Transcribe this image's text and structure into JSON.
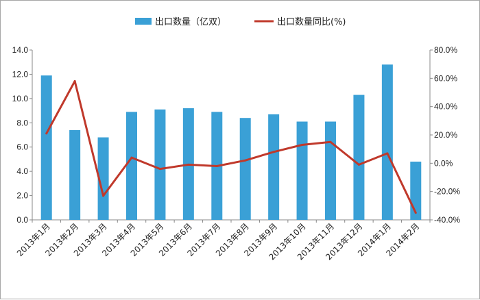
{
  "chart_data": {
    "type": "bar",
    "categories": [
      "2013年1月",
      "2013年2月",
      "2013年3月",
      "2013年4月",
      "2013年5月",
      "2013年6月",
      "2013年7月",
      "2013年8月",
      "2013年9月",
      "2013年10月",
      "2013年11月",
      "2013年12月",
      "2014年1月",
      "2014年2月"
    ],
    "series": [
      {
        "name": "出口数量（亿双）",
        "type": "bar",
        "axis": "left",
        "color": "#3aa0d6",
        "values": [
          11.9,
          7.4,
          6.8,
          8.9,
          9.1,
          9.2,
          8.9,
          8.4,
          8.7,
          8.1,
          8.1,
          10.3,
          12.8,
          4.8
        ]
      },
      {
        "name": "出口数量同比(%)",
        "type": "line",
        "axis": "right",
        "color": "#c0392b",
        "values": [
          21,
          58,
          -23,
          4,
          -4,
          -1,
          -2,
          2,
          8,
          13,
          15,
          -1,
          7,
          -35
        ]
      }
    ],
    "y_left": {
      "ylim": [
        0,
        14
      ],
      "ticks": [
        "0.0",
        "2.0",
        "4.0",
        "6.0",
        "8.0",
        "10.0",
        "12.0",
        "14.0"
      ]
    },
    "y_right": {
      "ylim": [
        -40,
        80
      ],
      "ticks": [
        "-40.0%",
        "-20.0%",
        "0.0%",
        "20.0%",
        "40.0%",
        "60.0%",
        "80.0%"
      ]
    },
    "grid": false,
    "legend_position": "top-center"
  }
}
